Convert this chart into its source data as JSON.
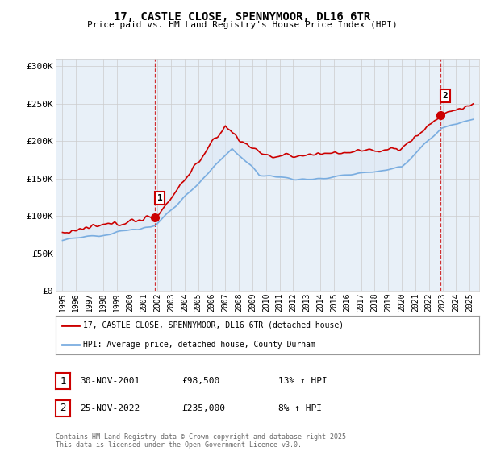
{
  "title": "17, CASTLE CLOSE, SPENNYMOOR, DL16 6TR",
  "subtitle": "Price paid vs. HM Land Registry's House Price Index (HPI)",
  "ylabel_ticks": [
    "£0",
    "£50K",
    "£100K",
    "£150K",
    "£200K",
    "£250K",
    "£300K"
  ],
  "ylim": [
    0,
    310000
  ],
  "legend_line1": "17, CASTLE CLOSE, SPENNYMOOR, DL16 6TR (detached house)",
  "legend_line2": "HPI: Average price, detached house, County Durham",
  "transaction1_label": "1",
  "transaction1_date": "30-NOV-2001",
  "transaction1_price": "£98,500",
  "transaction1_hpi": "13% ↑ HPI",
  "transaction2_label": "2",
  "transaction2_date": "25-NOV-2022",
  "transaction2_price": "£235,000",
  "transaction2_hpi": "8% ↑ HPI",
  "footer": "Contains HM Land Registry data © Crown copyright and database right 2025.\nThis data is licensed under the Open Government Licence v3.0.",
  "red_color": "#cc0000",
  "blue_color": "#7aade0",
  "fill_color": "#dce8f5",
  "grid_color": "#cccccc",
  "bg_color": "#ffffff",
  "chart_bg": "#e8f0f8",
  "vline_color": "#cc0000",
  "year_start": 1995,
  "year_end": 2025
}
